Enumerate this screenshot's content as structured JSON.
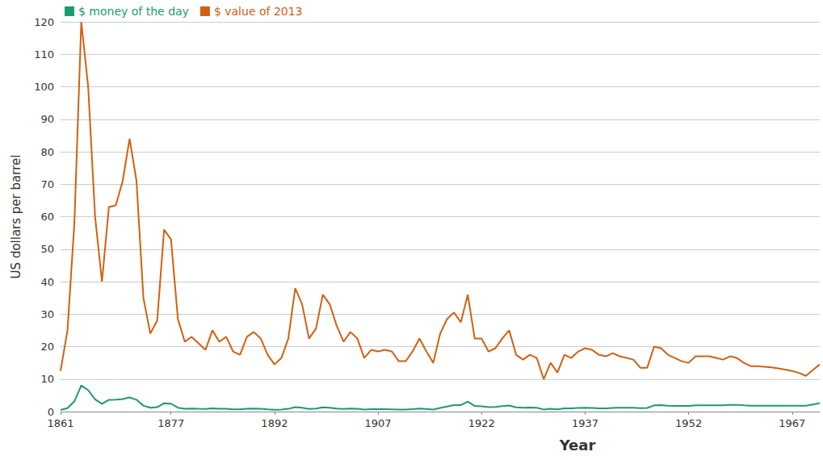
{
  "chart_data": {
    "type": "line",
    "x_label": "Year",
    "y_label": "US dollars per barrel",
    "x": [
      1861,
      1862,
      1863,
      1864,
      1865,
      1866,
      1867,
      1868,
      1869,
      1870,
      1871,
      1872,
      1873,
      1874,
      1875,
      1876,
      1877,
      1878,
      1879,
      1880,
      1881,
      1882,
      1883,
      1884,
      1885,
      1886,
      1887,
      1888,
      1889,
      1890,
      1891,
      1892,
      1893,
      1894,
      1895,
      1896,
      1897,
      1898,
      1899,
      1900,
      1901,
      1902,
      1903,
      1904,
      1905,
      1906,
      1907,
      1908,
      1909,
      1910,
      1911,
      1912,
      1913,
      1914,
      1915,
      1916,
      1917,
      1918,
      1919,
      1920,
      1921,
      1922,
      1923,
      1924,
      1925,
      1926,
      1927,
      1928,
      1929,
      1930,
      1931,
      1932,
      1933,
      1934,
      1935,
      1936,
      1937,
      1938,
      1939,
      1940,
      1941,
      1942,
      1943,
      1944,
      1945,
      1946,
      1947,
      1948,
      1949,
      1950,
      1951,
      1952,
      1953,
      1954,
      1955,
      1956,
      1957,
      1958,
      1959,
      1960,
      1961,
      1962,
      1963,
      1964,
      1965,
      1966,
      1967,
      1968,
      1969,
      1970,
      1971
    ],
    "series": [
      {
        "name": "$ money of the day",
        "color": "#1a9a72",
        "values": [
          0.49,
          1.05,
          3.15,
          8.06,
          6.59,
          3.74,
          2.41,
          3.63,
          3.64,
          3.86,
          4.34,
          3.64,
          1.83,
          1.17,
          1.35,
          2.56,
          2.42,
          1.19,
          0.86,
          0.95,
          0.86,
          0.78,
          1.0,
          0.84,
          0.88,
          0.71,
          0.67,
          0.88,
          0.94,
          0.87,
          0.67,
          0.56,
          0.64,
          0.84,
          1.36,
          1.18,
          0.79,
          0.91,
          1.29,
          1.19,
          0.96,
          0.8,
          0.94,
          0.86,
          0.62,
          0.73,
          0.72,
          0.72,
          0.7,
          0.61,
          0.61,
          0.74,
          0.95,
          0.81,
          0.64,
          1.1,
          1.56,
          1.98,
          2.01,
          3.07,
          1.73,
          1.61,
          1.34,
          1.43,
          1.68,
          1.88,
          1.3,
          1.17,
          1.27,
          1.19,
          0.65,
          0.87,
          0.67,
          1.0,
          0.97,
          1.09,
          1.18,
          1.13,
          1.02,
          1.02,
          1.14,
          1.19,
          1.2,
          1.21,
          1.05,
          1.12,
          1.9,
          1.99,
          1.8,
          1.71,
          1.71,
          1.71,
          1.93,
          1.93,
          1.93,
          1.93,
          1.9,
          2.08,
          2.08,
          1.9,
          1.8,
          1.8,
          1.8,
          1.8,
          1.8,
          1.8,
          1.8,
          1.8,
          1.8,
          2.2,
          2.6
        ]
      },
      {
        "name": "$ value of 2013",
        "color": "#d4600f",
        "values": [
          12.5,
          25,
          58,
          120,
          100,
          60,
          40,
          63,
          63.5,
          71,
          84,
          71,
          35,
          24,
          28,
          56,
          53,
          28.5,
          21.5,
          23,
          21,
          19,
          25,
          21.5,
          23,
          18.5,
          17.5,
          23,
          24.5,
          22.5,
          17.5,
          14.5,
          16.5,
          22.5,
          38,
          33,
          22.5,
          25.5,
          36,
          33,
          26.5,
          21.5,
          24.5,
          22.5,
          16.5,
          19,
          18.5,
          19,
          18.5,
          15.5,
          15.5,
          18.5,
          22.5,
          18.5,
          15,
          24,
          28.5,
          30.5,
          27.5,
          36,
          22.5,
          22.5,
          18.5,
          19.5,
          22.5,
          25,
          17.5,
          16,
          17.5,
          16.5,
          10,
          15,
          12,
          17.5,
          16.5,
          18.5,
          19.5,
          19,
          17.5,
          17,
          18,
          17,
          16.5,
          16,
          13.5,
          13.5,
          20,
          19.5,
          17.5,
          16.5,
          15.5,
          15,
          17,
          17,
          17,
          16.5,
          16,
          17,
          16.5,
          15,
          14,
          14,
          13.8,
          13.6,
          13.3,
          12.9,
          12.5,
          11.9,
          11,
          12.8,
          14.5
        ]
      }
    ],
    "xlim": [
      1861,
      1971
    ],
    "xticks": [
      1861,
      1877,
      1892,
      1907,
      1922,
      1937,
      1952,
      1967
    ],
    "ylim": [
      0,
      120
    ],
    "yticks": [
      0,
      10,
      20,
      30,
      40,
      50,
      60,
      70,
      80,
      90,
      100,
      110,
      120
    ],
    "grid": true,
    "legend": "top-left",
    "line_style": "solid"
  }
}
